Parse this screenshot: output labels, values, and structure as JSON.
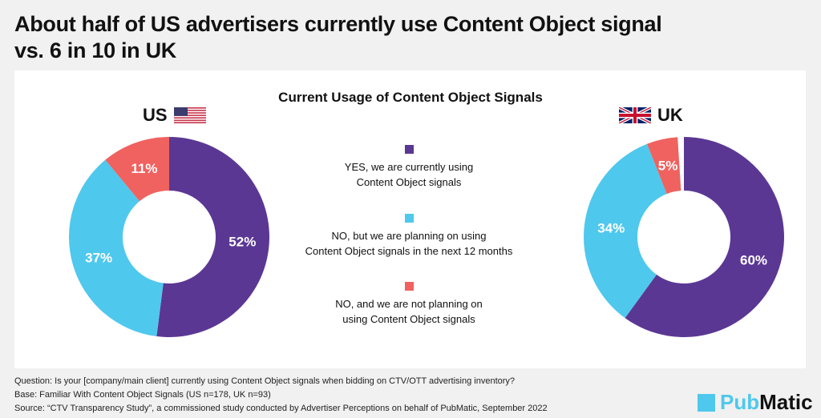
{
  "title_line1": "About half of US advertisers currently use Content Object signal",
  "title_line2": "vs. 6 in 10 in UK",
  "colors": {
    "yes": "#5b3794",
    "planning": "#4fc8ed",
    "no": "#f0625f"
  },
  "chart_data": [
    {
      "type": "pie",
      "donut": true,
      "title": "Current Usage of Content Object Signals",
      "label": "US",
      "categories": [
        "YES, we are currently using Content Object signals",
        "NO, but we are planning on using Content Object signals in the next 12 months",
        "NO, and we are not planning on using Content Object signals"
      ],
      "values": [
        52,
        37,
        11
      ],
      "value_labels": [
        "52%",
        "37%",
        "11%"
      ]
    },
    {
      "type": "pie",
      "donut": true,
      "label": "UK",
      "categories": [
        "YES, we are currently using Content Object signals",
        "NO, but we are planning on using Content Object signals in the next 12 months",
        "NO, and we are not planning on using Content Object signals"
      ],
      "values": [
        60,
        34,
        5
      ],
      "value_labels": [
        "60%",
        "34%",
        "5%"
      ]
    }
  ],
  "legend": [
    {
      "l1": "YES, we are currently using",
      "l2": "Content Object signals"
    },
    {
      "l1": "NO, but we are planning on using",
      "l2": "Content Object signals in the next 12 months"
    },
    {
      "l1": "NO, and we are not planning on",
      "l2": "using Content Object signals"
    }
  ],
  "notes": {
    "question": "Question:  Is your [company/main client] currently using Content Object signals when bidding on CTV/OTT advertising inventory?",
    "base": "Base: Familiar With Content Object Signals (US n=178, UK n=93)",
    "source": "Source: “CTV Transparency Study”, a commissioned study conducted by Advertiser Perceptions on behalf of PubMatic, September 2022"
  },
  "logo": {
    "part1": "Pub",
    "part2": "Matic"
  }
}
